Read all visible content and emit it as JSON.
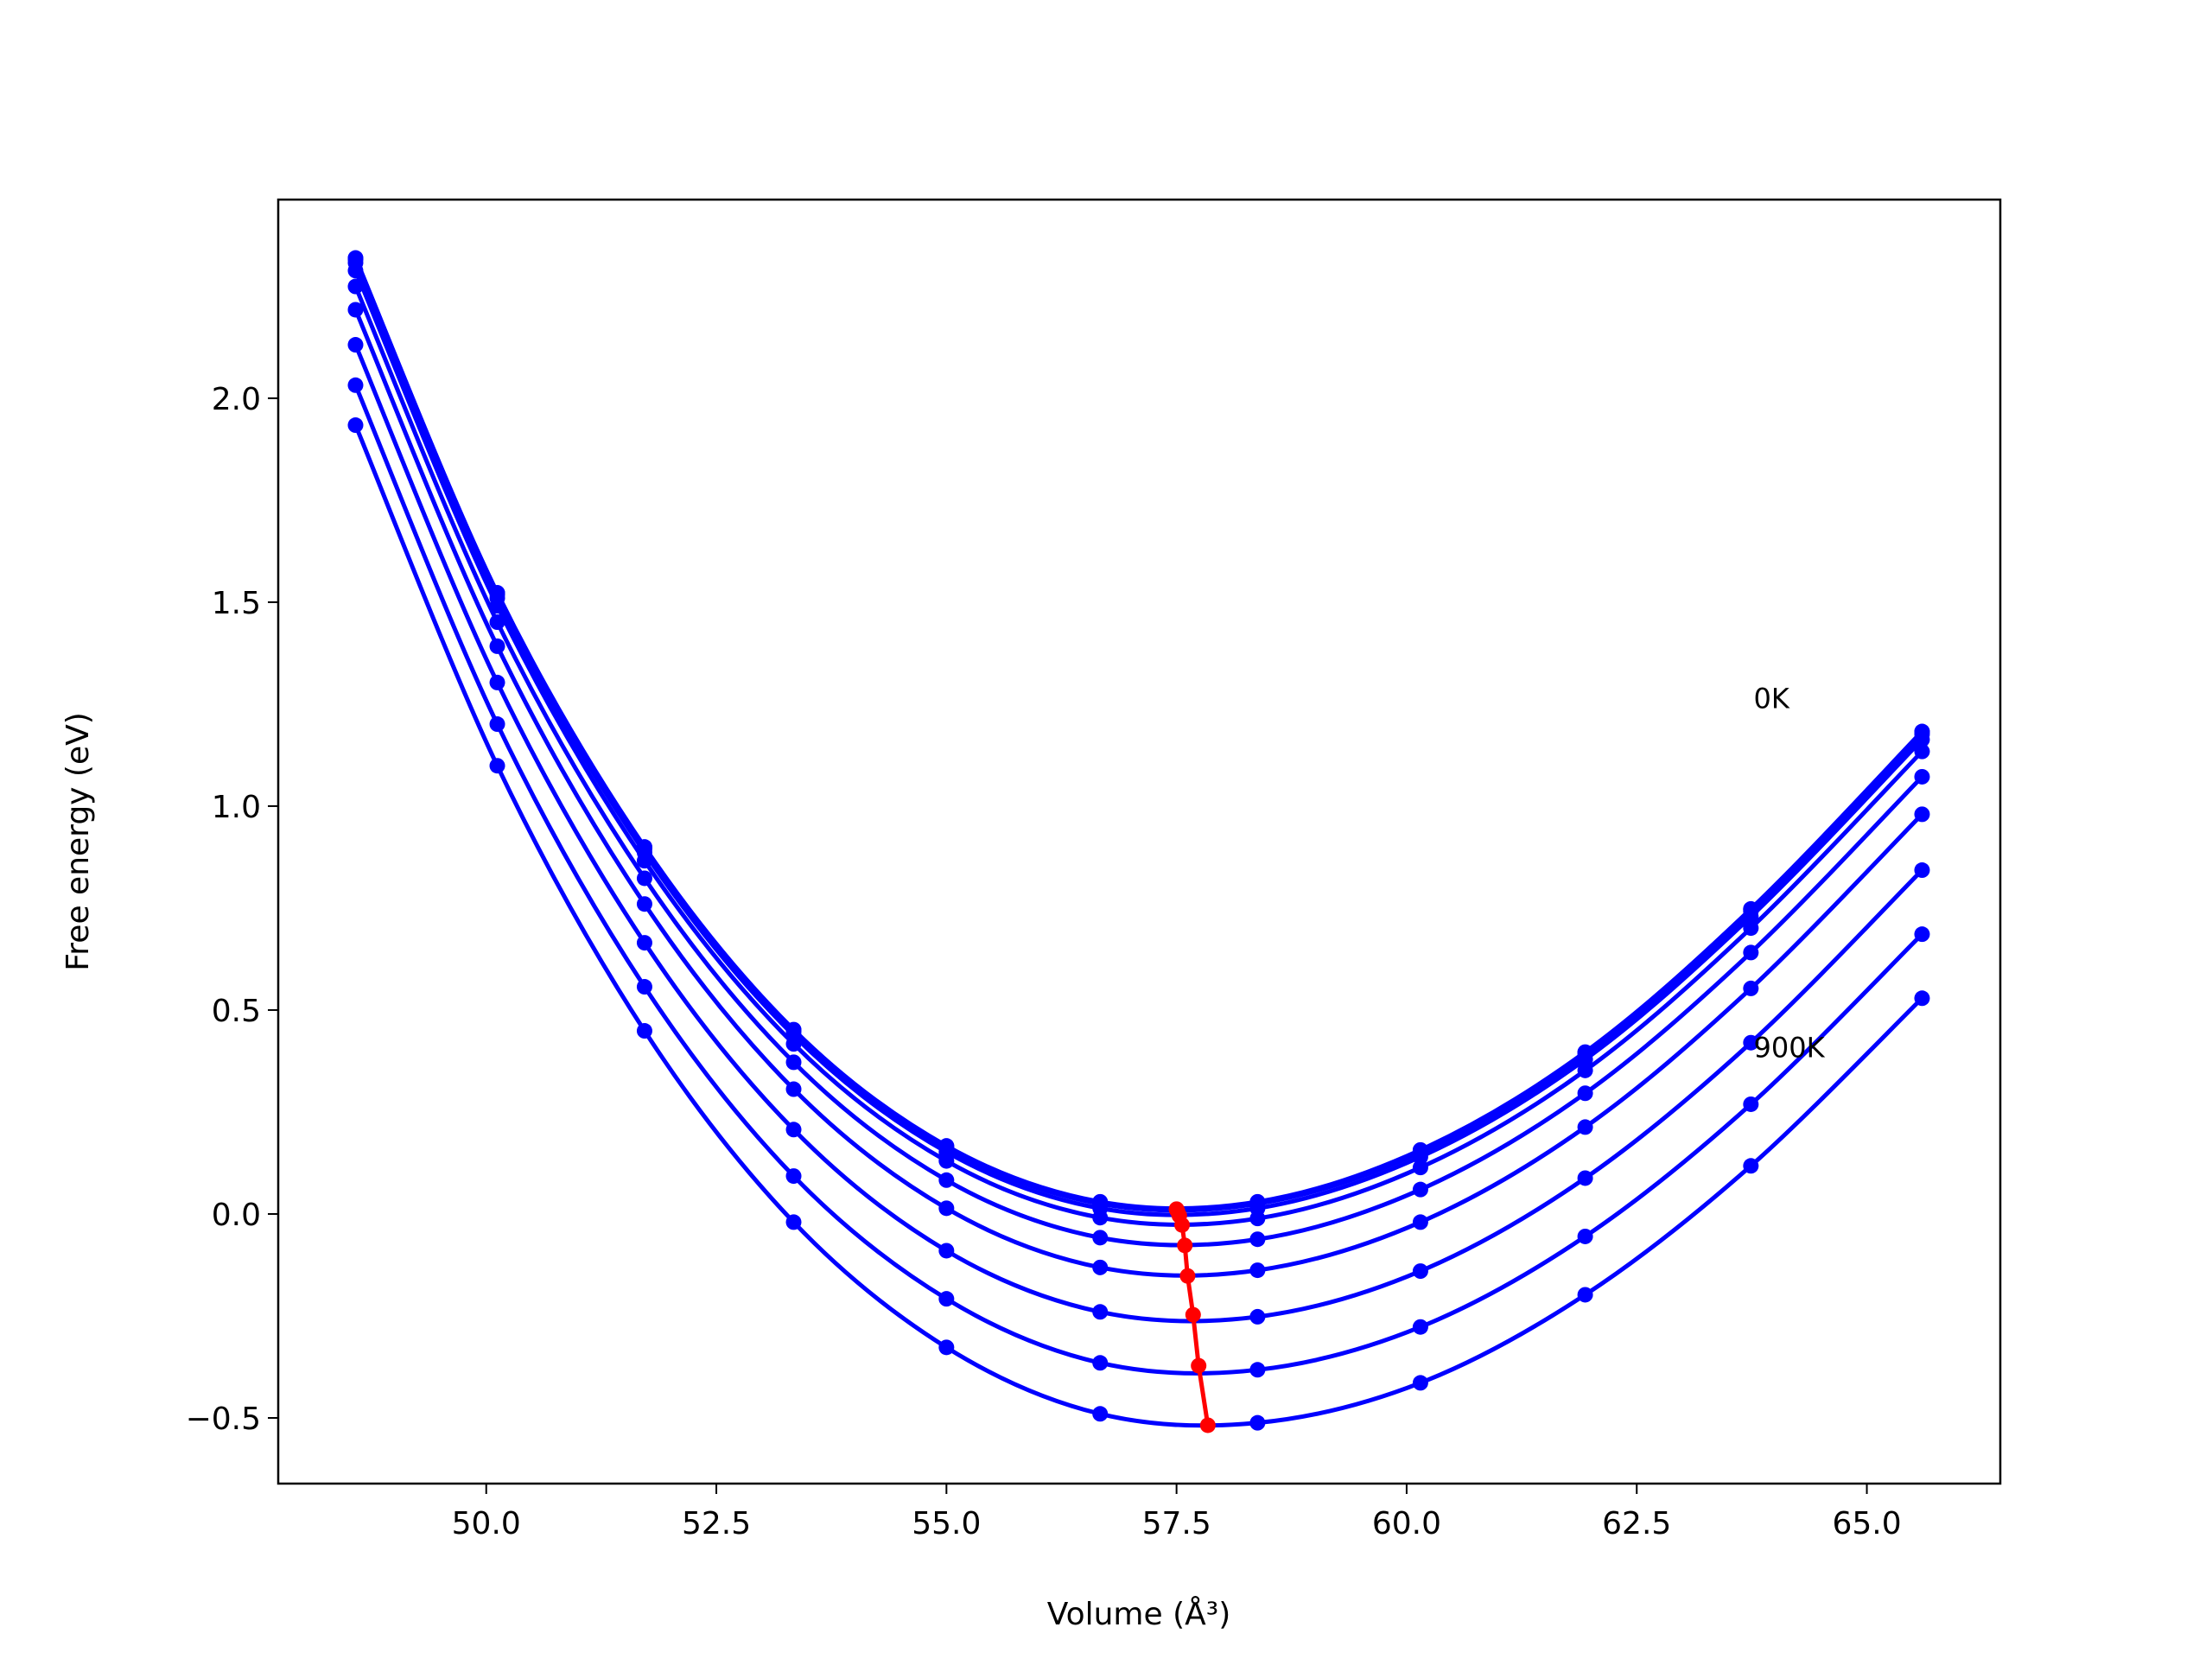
{
  "chart_data": {
    "type": "line",
    "x_label": "Volume (Å³)",
    "y_label": "Free energy (eV)",
    "x": [
      48.58,
      50.12,
      51.72,
      53.34,
      55.0,
      56.67,
      58.38,
      60.15,
      61.94,
      63.74,
      65.6
    ],
    "series": [
      {
        "color": "#0000ff",
        "values": [
          2.344,
          1.523,
          0.9,
          0.452,
          0.167,
          0.03,
          0.03,
          0.157,
          0.397,
          0.748,
          1.183
        ]
      },
      {
        "color": "#0000ff",
        "values": [
          2.343,
          1.522,
          0.899,
          0.451,
          0.166,
          0.029,
          0.029,
          0.156,
          0.396,
          0.747,
          1.182
        ]
      },
      {
        "color": "#0000ff",
        "values": [
          2.34,
          1.519,
          0.895,
          0.447,
          0.162,
          0.025,
          0.025,
          0.151,
          0.391,
          0.742,
          1.176
        ]
      },
      {
        "color": "#0000ff",
        "values": [
          2.332,
          1.51,
          0.886,
          0.438,
          0.152,
          0.014,
          0.014,
          0.14,
          0.379,
          0.729,
          1.163
        ]
      },
      {
        "color": "#0000ff",
        "values": [
          2.313,
          1.491,
          0.866,
          0.417,
          0.13,
          -0.009,
          -0.011,
          0.114,
          0.352,
          0.701,
          1.134
        ]
      },
      {
        "color": "#0000ff",
        "values": [
          2.274,
          1.451,
          0.823,
          0.372,
          0.083,
          -0.058,
          -0.062,
          0.06,
          0.296,
          0.641,
          1.072
        ]
      },
      {
        "color": "#0000ff",
        "values": [
          2.217,
          1.392,
          0.76,
          0.306,
          0.014,
          -0.131,
          -0.138,
          -0.02,
          0.213,
          0.553,
          0.98
        ]
      },
      {
        "color": "#0000ff",
        "values": [
          2.131,
          1.303,
          0.665,
          0.207,
          -0.09,
          -0.24,
          -0.252,
          -0.14,
          0.088,
          0.42,
          0.843
        ]
      },
      {
        "color": "#0000ff",
        "values": [
          2.032,
          1.201,
          0.557,
          0.093,
          -0.208,
          -0.365,
          -0.382,
          -0.277,
          -0.055,
          0.269,
          0.686
        ]
      },
      {
        "color": "#0000ff",
        "values": [
          1.934,
          1.099,
          0.449,
          -0.02,
          -0.327,
          -0.49,
          -0.512,
          -0.414,
          -0.198,
          0.118,
          0.529
        ]
      }
    ],
    "minima": {
      "color": "#ff0000",
      "x": [
        57.5,
        57.5,
        57.51,
        57.53,
        57.56,
        57.59,
        57.62,
        57.68,
        57.74,
        57.84
      ],
      "values": [
        0.012,
        0.011,
        0.007,
        -0.004,
        -0.027,
        -0.077,
        -0.152,
        -0.247,
        -0.372,
        -0.518
      ]
    },
    "annotations": [
      {
        "text": "0K",
        "x": 63.77,
        "y": 1.266
      },
      {
        "text": "900K",
        "x": 63.77,
        "y": 0.41
      }
    ],
    "xlim": [
      47.74,
      66.45
    ],
    "ylim": [
      -0.661,
      2.487
    ],
    "xticks": [
      {
        "value": 50,
        "label": "50.0"
      },
      {
        "value": 52.5,
        "label": "52.5"
      },
      {
        "value": 55,
        "label": "55.0"
      },
      {
        "value": 57.5,
        "label": "57.5"
      },
      {
        "value": 60,
        "label": "60.0"
      },
      {
        "value": 62.5,
        "label": "62.5"
      },
      {
        "value": 65,
        "label": "65.0"
      }
    ],
    "yticks": [
      {
        "value": -0.5,
        "label": "−0.5"
      },
      {
        "value": 0,
        "label": "0.0"
      },
      {
        "value": 0.5,
        "label": "0.5"
      },
      {
        "value": 1,
        "label": "1.0"
      },
      {
        "value": 1.5,
        "label": "1.5"
      },
      {
        "value": 2,
        "label": "2.0"
      }
    ],
    "grid": false
  }
}
